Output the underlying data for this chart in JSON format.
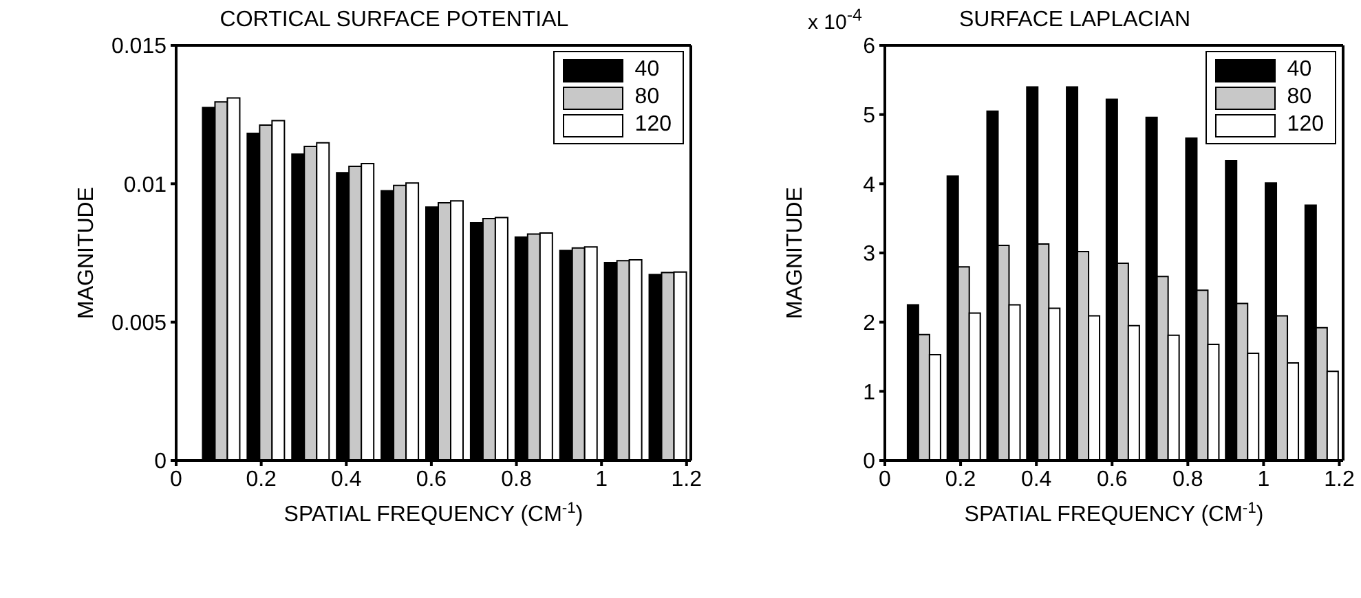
{
  "chart_data": [
    {
      "type": "bar",
      "title": "CORTICAL SURFACE POTENTIAL",
      "xlabel": "SPATIAL FREQUENCY (CM$^{-1}$)",
      "ylabel": "MAGNITUDE",
      "x": [
        0.105,
        0.21,
        0.315,
        0.42,
        0.525,
        0.63,
        0.735,
        0.84,
        0.945,
        1.05,
        1.155
      ],
      "series": [
        {
          "name": "40",
          "color": "#000000",
          "values": [
            0.01275,
            0.01182,
            0.01107,
            0.0104,
            0.00975,
            0.00916,
            0.00859,
            0.00807,
            0.00759,
            0.00715,
            0.00672
          ]
        },
        {
          "name": "80",
          "color": "#c8c8c8",
          "values": [
            0.01296,
            0.01212,
            0.01135,
            0.01063,
            0.00994,
            0.00931,
            0.00874,
            0.00818,
            0.00768,
            0.00722,
            0.00679
          ]
        },
        {
          "name": "120",
          "color": "#ffffff",
          "values": [
            0.0131,
            0.01228,
            0.01148,
            0.01073,
            0.01003,
            0.00938,
            0.00878,
            0.00822,
            0.00772,
            0.00725,
            0.00681
          ]
        }
      ],
      "xlim": [
        0,
        1.21
      ],
      "xticks": [
        0,
        0.2,
        0.4,
        0.6,
        0.8,
        1,
        1.2
      ],
      "ylim": [
        0,
        0.015
      ],
      "yticks": [
        0,
        0.005,
        0.01,
        0.015
      ],
      "legend": "top right"
    },
    {
      "type": "bar",
      "title": "SURFACE LAPLACIAN",
      "xlabel": "SPATIAL FREQUENCY (CM$^{-1}$)",
      "ylabel": "MAGNITUDE",
      "annotations": [
        "x 10$^{-4}$"
      ],
      "x": [
        0.105,
        0.21,
        0.315,
        0.42,
        0.525,
        0.63,
        0.735,
        0.84,
        0.945,
        1.05,
        1.155
      ],
      "series": [
        {
          "name": "40",
          "color": "#000000",
          "values": [
            2.25,
            4.11,
            5.05,
            5.4,
            5.4,
            5.22,
            4.96,
            4.66,
            4.33,
            4.01,
            3.69
          ]
        },
        {
          "name": "80",
          "color": "#c8c8c8",
          "values": [
            1.82,
            2.8,
            3.11,
            3.13,
            3.02,
            2.85,
            2.66,
            2.46,
            2.27,
            2.09,
            1.92
          ]
        },
        {
          "name": "120",
          "color": "#ffffff",
          "values": [
            1.53,
            2.13,
            2.25,
            2.2,
            2.09,
            1.95,
            1.81,
            1.68,
            1.55,
            1.41,
            1.29
          ]
        }
      ],
      "xlim": [
        0,
        1.21
      ],
      "xticks": [
        0,
        0.2,
        0.4,
        0.6,
        0.8,
        1,
        1.2
      ],
      "ylim": [
        0,
        6
      ],
      "yticks": [
        0,
        1,
        2,
        3,
        4,
        5,
        6
      ],
      "legend": "top right"
    }
  ]
}
